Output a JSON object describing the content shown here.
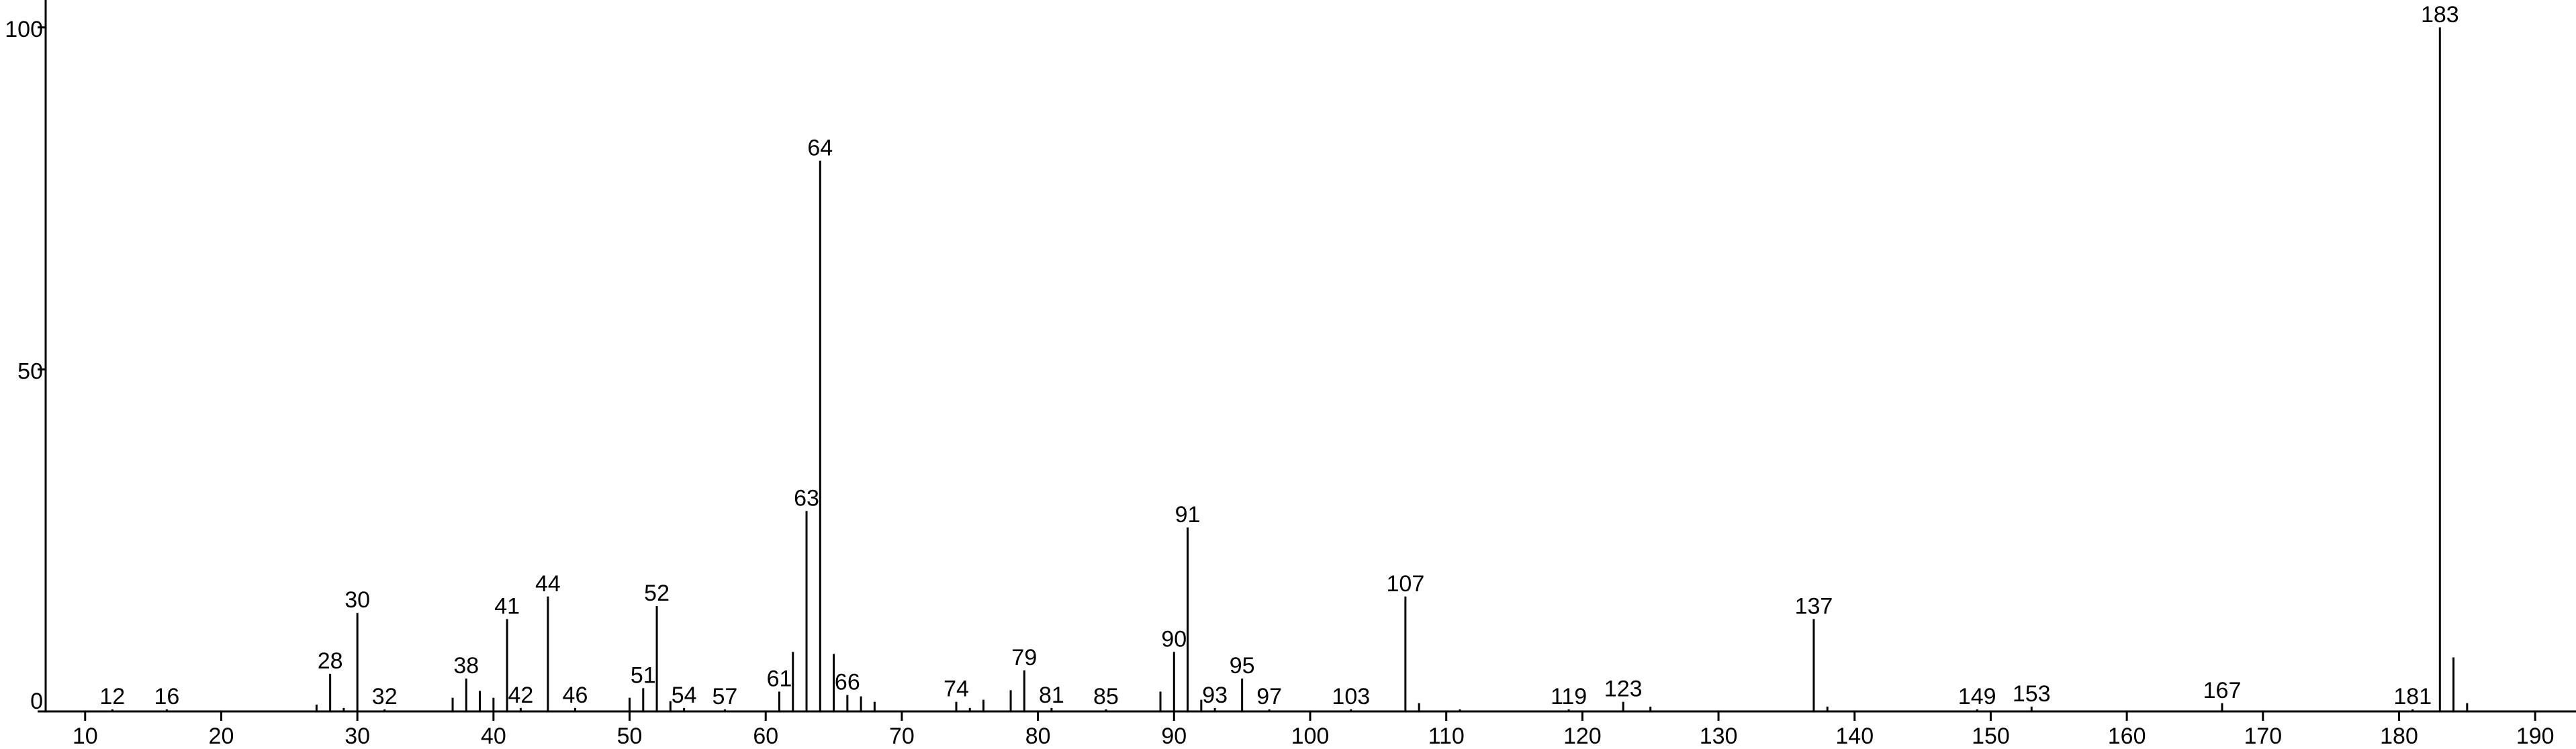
{
  "chart_data": {
    "type": "stem",
    "x": [
      12,
      16,
      27,
      28,
      29,
      30,
      32,
      37,
      38,
      39,
      40,
      41,
      42,
      44,
      46,
      50,
      51,
      52,
      53,
      54,
      57,
      61,
      62,
      63,
      64,
      65,
      66,
      67,
      68,
      74,
      75,
      76,
      78,
      79,
      81,
      85,
      89,
      90,
      91,
      92,
      93,
      95,
      97,
      103,
      107,
      108,
      111,
      119,
      123,
      125,
      137,
      138,
      149,
      153,
      167,
      181,
      183,
      184,
      185
    ],
    "values": [
      0.3,
      0.3,
      1,
      5.5,
      0.5,
      14.4,
      0.3,
      2,
      4.8,
      3,
      2,
      13.5,
      0.5,
      16.8,
      0.5,
      2,
      3.4,
      15.4,
      1.5,
      0.5,
      0.3,
      2.9,
      8.7,
      29.3,
      80.5,
      8.4,
      2.4,
      2.2,
      1.4,
      1.4,
      0.5,
      1.7,
      3.1,
      6,
      0.5,
      0.3,
      2.9,
      8.7,
      26.9,
      1.7,
      0.5,
      4.8,
      0.3,
      0.3,
      16.8,
      1.2,
      0.3,
      0.3,
      1.4,
      0.7,
      13.5,
      0.7,
      0.3,
      0.7,
      1.2,
      0.3,
      100,
      7.9,
      1.2
    ],
    "labels": [
      "12",
      "16",
      null,
      "28",
      null,
      "30",
      "32",
      null,
      "38",
      null,
      null,
      "41",
      "42",
      "44",
      "46",
      null,
      "51",
      "52",
      null,
      "54",
      "57",
      "61",
      null,
      "63",
      "64",
      null,
      "66",
      null,
      null,
      "74",
      null,
      null,
      null,
      "79",
      "81",
      "85",
      null,
      "90",
      "91",
      null,
      "93",
      "95",
      "97",
      "103",
      "107",
      null,
      null,
      "119",
      "123",
      null,
      "137",
      null,
      "149",
      "153",
      "167",
      "181",
      "183",
      null,
      null
    ],
    "color": "#000000",
    "xlim": [
      7.1,
      193
    ],
    "xticks": [
      10,
      20,
      30,
      40,
      50,
      60,
      70,
      80,
      90,
      100,
      110,
      120,
      130,
      140,
      150,
      160,
      170,
      180,
      190
    ],
    "ylim": [
      0,
      104
    ],
    "yticks": [
      0,
      50,
      100
    ]
  }
}
